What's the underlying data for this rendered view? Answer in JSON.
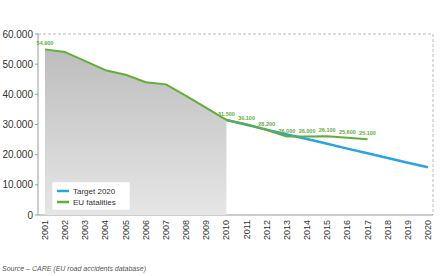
{
  "chart_data": {
    "type": "line",
    "source": "Source – CARE (EU road accidents database)",
    "categories": [
      "2001",
      "2002",
      "2003",
      "2004",
      "2005",
      "2006",
      "2007",
      "2008",
      "2009",
      "2010",
      "2011",
      "2012",
      "2013",
      "2014",
      "2015",
      "2016",
      "2017",
      "2018",
      "2019",
      "2020"
    ],
    "series": [
      {
        "name": "Target 2020",
        "color": "#2aa3e0",
        "values": [
          null,
          null,
          null,
          null,
          null,
          null,
          null,
          null,
          null,
          31500,
          29900,
          28300,
          26700,
          25200,
          23600,
          22000,
          20500,
          18900,
          17300,
          15800
        ]
      },
      {
        "name": "EU fatalities",
        "color": "#62ad3c",
        "values": [
          54900,
          54000,
          51000,
          48000,
          46500,
          44000,
          43300,
          39500,
          35500,
          31500,
          30100,
          28200,
          26000,
          26000,
          26100,
          25600,
          25100,
          null,
          null,
          null
        ],
        "data_labels": true,
        "value_labels": [
          "54.900",
          null,
          null,
          null,
          null,
          null,
          null,
          null,
          null,
          "31.500",
          "30.100",
          "28.200",
          "26.000",
          "26.000",
          "26.100",
          "25.600",
          "25.100",
          null,
          null,
          null
        ]
      }
    ],
    "ylim": [
      0,
      60000
    ],
    "yticks": [
      0,
      {
        "value": 10000,
        "label": "10.000"
      },
      {
        "value": 20000,
        "label": "20.000"
      },
      {
        "value": 30000,
        "label": "30.000"
      },
      {
        "value": 40000,
        "label": "40.000"
      },
      {
        "value": 50000,
        "label": "50.000"
      },
      {
        "value": 60000,
        "label": "60.000"
      }
    ],
    "grid": false,
    "legend": "lower left"
  }
}
